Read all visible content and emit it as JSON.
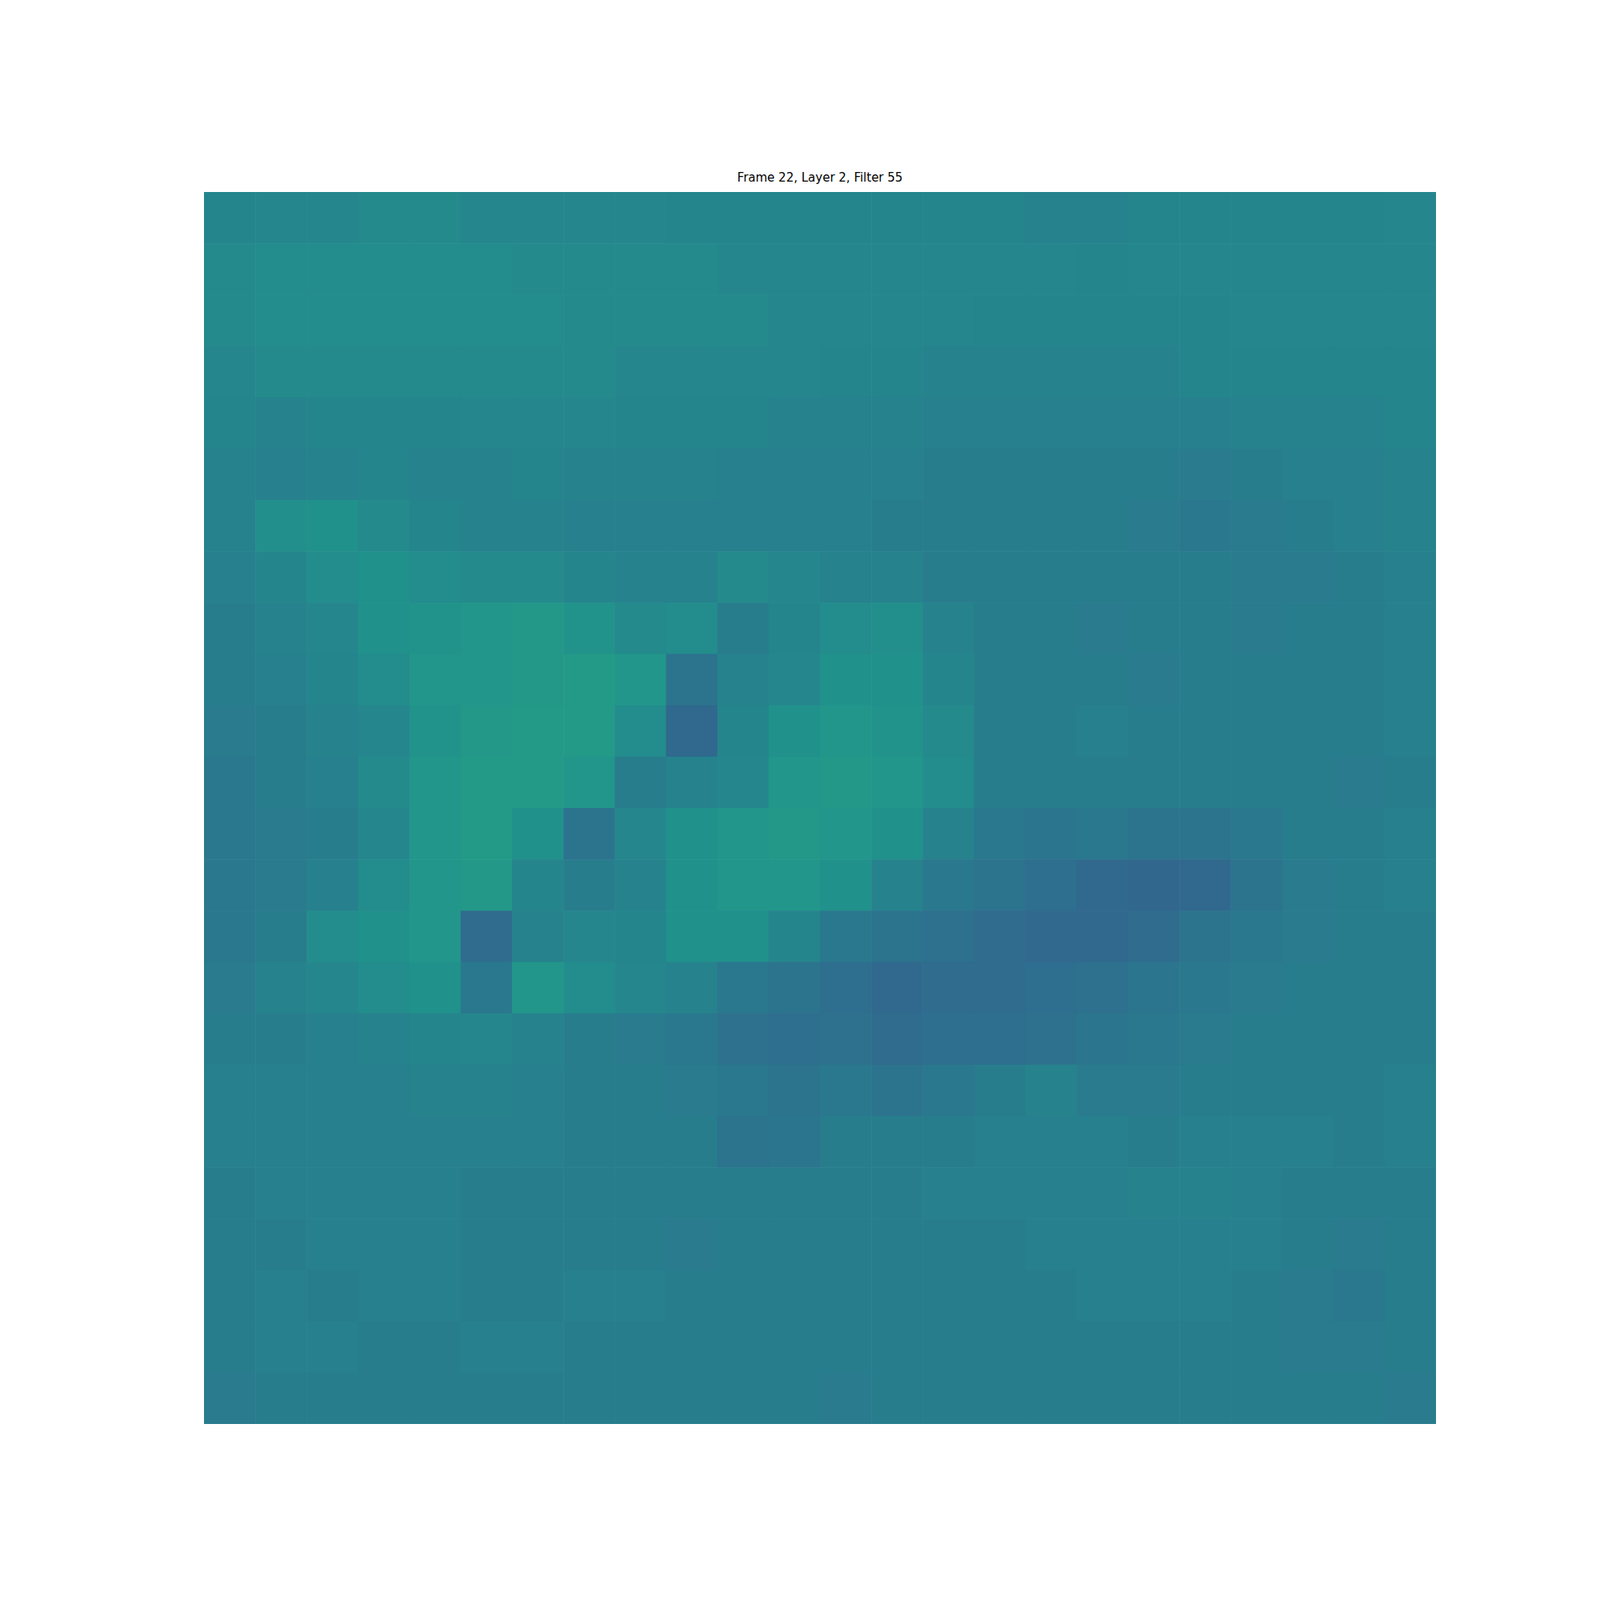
{
  "chart_data": {
    "type": "heatmap",
    "title": "Frame 22, Layer 2, Filter 55",
    "tick_labels": false,
    "color_range": [
      0,
      1
    ],
    "cells": [
      [
        0.45,
        0.46,
        0.46,
        0.47,
        0.47,
        0.46,
        0.46,
        0.46,
        0.46,
        0.45,
        0.45,
        0.45,
        0.45,
        0.45,
        0.45,
        0.45,
        0.44,
        0.44,
        0.45,
        0.45,
        0.45,
        0.45,
        0.45,
        0.46
      ],
      [
        0.47,
        0.48,
        0.48,
        0.48,
        0.48,
        0.48,
        0.47,
        0.47,
        0.47,
        0.47,
        0.46,
        0.46,
        0.46,
        0.46,
        0.46,
        0.46,
        0.46,
        0.45,
        0.46,
        0.46,
        0.46,
        0.46,
        0.46,
        0.46
      ],
      [
        0.47,
        0.48,
        0.48,
        0.48,
        0.48,
        0.48,
        0.48,
        0.47,
        0.47,
        0.47,
        0.47,
        0.46,
        0.46,
        0.46,
        0.46,
        0.45,
        0.45,
        0.45,
        0.45,
        0.45,
        0.46,
        0.46,
        0.46,
        0.46
      ],
      [
        0.46,
        0.47,
        0.47,
        0.47,
        0.47,
        0.47,
        0.47,
        0.47,
        0.46,
        0.46,
        0.46,
        0.46,
        0.45,
        0.45,
        0.44,
        0.44,
        0.44,
        0.44,
        0.44,
        0.45,
        0.45,
        0.45,
        0.45,
        0.45
      ],
      [
        0.45,
        0.44,
        0.45,
        0.45,
        0.45,
        0.46,
        0.46,
        0.46,
        0.45,
        0.45,
        0.45,
        0.44,
        0.44,
        0.44,
        0.43,
        0.43,
        0.43,
        0.43,
        0.43,
        0.43,
        0.44,
        0.44,
        0.44,
        0.45
      ],
      [
        0.44,
        0.43,
        0.44,
        0.45,
        0.44,
        0.44,
        0.45,
        0.44,
        0.44,
        0.44,
        0.43,
        0.43,
        0.43,
        0.43,
        0.42,
        0.42,
        0.42,
        0.42,
        0.42,
        0.41,
        0.42,
        0.43,
        0.43,
        0.44
      ],
      [
        0.44,
        0.49,
        0.5,
        0.47,
        0.45,
        0.44,
        0.44,
        0.43,
        0.43,
        0.43,
        0.43,
        0.43,
        0.43,
        0.42,
        0.42,
        0.42,
        0.42,
        0.42,
        0.41,
        0.4,
        0.41,
        0.42,
        0.43,
        0.44
      ],
      [
        0.43,
        0.45,
        0.48,
        0.5,
        0.48,
        0.47,
        0.47,
        0.45,
        0.44,
        0.44,
        0.47,
        0.46,
        0.44,
        0.44,
        0.42,
        0.42,
        0.42,
        0.42,
        0.42,
        0.42,
        0.41,
        0.41,
        0.42,
        0.43
      ],
      [
        0.42,
        0.44,
        0.46,
        0.5,
        0.51,
        0.52,
        0.53,
        0.51,
        0.47,
        0.48,
        0.42,
        0.45,
        0.48,
        0.49,
        0.44,
        0.42,
        0.42,
        0.41,
        0.42,
        0.42,
        0.41,
        0.42,
        0.42,
        0.43
      ],
      [
        0.42,
        0.43,
        0.45,
        0.48,
        0.52,
        0.52,
        0.53,
        0.54,
        0.52,
        0.38,
        0.44,
        0.46,
        0.5,
        0.5,
        0.45,
        0.42,
        0.42,
        0.42,
        0.41,
        0.42,
        0.42,
        0.42,
        0.42,
        0.43
      ],
      [
        0.41,
        0.42,
        0.44,
        0.46,
        0.51,
        0.53,
        0.54,
        0.54,
        0.48,
        0.34,
        0.45,
        0.5,
        0.52,
        0.51,
        0.47,
        0.42,
        0.42,
        0.43,
        0.42,
        0.42,
        0.42,
        0.42,
        0.42,
        0.43
      ],
      [
        0.4,
        0.42,
        0.43,
        0.47,
        0.52,
        0.54,
        0.54,
        0.52,
        0.42,
        0.44,
        0.46,
        0.52,
        0.53,
        0.52,
        0.48,
        0.42,
        0.42,
        0.42,
        0.42,
        0.42,
        0.42,
        0.42,
        0.41,
        0.42
      ],
      [
        0.4,
        0.41,
        0.42,
        0.46,
        0.52,
        0.54,
        0.5,
        0.38,
        0.46,
        0.5,
        0.52,
        0.53,
        0.52,
        0.5,
        0.44,
        0.4,
        0.39,
        0.4,
        0.38,
        0.38,
        0.4,
        0.42,
        0.42,
        0.43
      ],
      [
        0.4,
        0.41,
        0.43,
        0.48,
        0.52,
        0.53,
        0.45,
        0.42,
        0.44,
        0.5,
        0.52,
        0.52,
        0.5,
        0.44,
        0.4,
        0.38,
        0.36,
        0.34,
        0.33,
        0.34,
        0.38,
        0.41,
        0.42,
        0.43
      ],
      [
        0.4,
        0.42,
        0.48,
        0.5,
        0.52,
        0.35,
        0.44,
        0.46,
        0.45,
        0.5,
        0.5,
        0.45,
        0.4,
        0.38,
        0.37,
        0.35,
        0.34,
        0.34,
        0.35,
        0.38,
        0.4,
        0.41,
        0.42,
        0.42
      ],
      [
        0.41,
        0.44,
        0.46,
        0.48,
        0.5,
        0.4,
        0.52,
        0.48,
        0.46,
        0.44,
        0.4,
        0.38,
        0.36,
        0.34,
        0.35,
        0.35,
        0.36,
        0.37,
        0.39,
        0.4,
        0.41,
        0.42,
        0.42,
        0.42
      ],
      [
        0.42,
        0.42,
        0.43,
        0.44,
        0.45,
        0.46,
        0.44,
        0.42,
        0.41,
        0.4,
        0.37,
        0.36,
        0.37,
        0.35,
        0.36,
        0.36,
        0.37,
        0.39,
        0.4,
        0.41,
        0.42,
        0.42,
        0.42,
        0.42
      ],
      [
        0.43,
        0.43,
        0.43,
        0.43,
        0.44,
        0.44,
        0.43,
        0.42,
        0.42,
        0.41,
        0.4,
        0.38,
        0.4,
        0.38,
        0.4,
        0.42,
        0.44,
        0.41,
        0.41,
        0.42,
        0.42,
        0.42,
        0.42,
        0.43
      ],
      [
        0.43,
        0.43,
        0.43,
        0.43,
        0.43,
        0.43,
        0.43,
        0.42,
        0.42,
        0.42,
        0.38,
        0.39,
        0.42,
        0.42,
        0.42,
        0.43,
        0.43,
        0.43,
        0.42,
        0.43,
        0.43,
        0.43,
        0.42,
        0.43
      ],
      [
        0.42,
        0.43,
        0.43,
        0.43,
        0.43,
        0.42,
        0.42,
        0.42,
        0.42,
        0.42,
        0.42,
        0.42,
        0.42,
        0.42,
        0.43,
        0.43,
        0.43,
        0.43,
        0.44,
        0.44,
        0.43,
        0.42,
        0.42,
        0.42
      ],
      [
        0.42,
        0.42,
        0.43,
        0.43,
        0.43,
        0.42,
        0.42,
        0.42,
        0.42,
        0.41,
        0.42,
        0.42,
        0.42,
        0.42,
        0.42,
        0.42,
        0.43,
        0.43,
        0.43,
        0.43,
        0.43,
        0.42,
        0.41,
        0.42
      ],
      [
        0.42,
        0.43,
        0.42,
        0.43,
        0.43,
        0.42,
        0.42,
        0.43,
        0.43,
        0.42,
        0.42,
        0.42,
        0.42,
        0.42,
        0.42,
        0.42,
        0.42,
        0.43,
        0.43,
        0.43,
        0.42,
        0.41,
        0.4,
        0.42
      ],
      [
        0.42,
        0.43,
        0.43,
        0.42,
        0.42,
        0.43,
        0.43,
        0.42,
        0.42,
        0.42,
        0.42,
        0.42,
        0.42,
        0.42,
        0.42,
        0.42,
        0.42,
        0.42,
        0.42,
        0.42,
        0.42,
        0.41,
        0.41,
        0.42
      ],
      [
        0.41,
        0.42,
        0.42,
        0.42,
        0.42,
        0.42,
        0.42,
        0.42,
        0.42,
        0.42,
        0.42,
        0.42,
        0.41,
        0.42,
        0.42,
        0.42,
        0.42,
        0.42,
        0.42,
        0.42,
        0.42,
        0.42,
        0.42,
        0.41
      ]
    ]
  }
}
